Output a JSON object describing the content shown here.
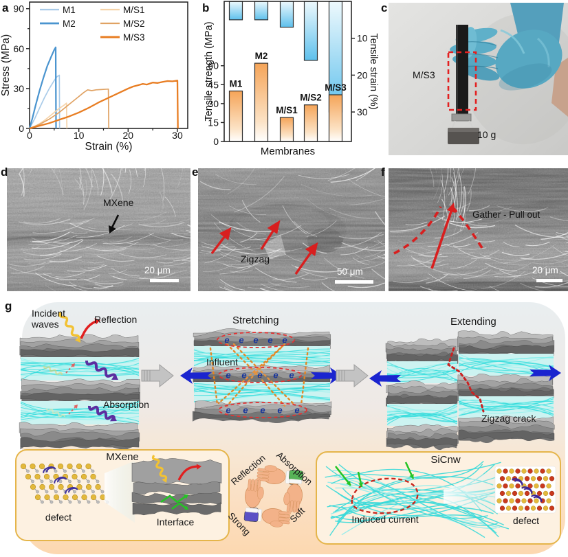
{
  "letters": [
    "a",
    "b",
    "c",
    "d",
    "e",
    "f",
    "g"
  ],
  "chart_data": [
    {
      "id": "stress-strain",
      "type": "line",
      "title": "",
      "xlabel": "Strain (%)",
      "ylabel": "Stress (MPa)",
      "xlim": [
        0,
        32.1
      ],
      "ylim": [
        0,
        95
      ],
      "xticks": [
        0,
        10,
        20,
        30
      ],
      "yticks": [
        0,
        30,
        60,
        90
      ],
      "xminor": [
        5,
        15,
        25
      ],
      "yminor": [
        15,
        45,
        75
      ],
      "grid": false,
      "legend_position": "top-left",
      "legend_columns": [
        [
          0,
          1
        ],
        [
          2,
          3,
          4
        ]
      ],
      "series": [
        {
          "name": "M1",
          "color": "#a9cbe9",
          "width": 1.7,
          "points": [
            [
              0,
              0
            ],
            [
              1,
              7
            ],
            [
              2,
              15
            ],
            [
              3,
              23
            ],
            [
              4,
              30
            ],
            [
              5,
              36
            ],
            [
              5.6,
              39
            ],
            [
              6.05,
              40
            ],
            [
              6.1,
              0
            ]
          ]
        },
        {
          "name": "M2",
          "color": "#4a94cf",
          "width": 2.2,
          "points": [
            [
              0,
              0
            ],
            [
              0.6,
              8
            ],
            [
              1.2,
              17
            ],
            [
              2,
              28
            ],
            [
              2.8,
              38
            ],
            [
              3.6,
              47
            ],
            [
              4.4,
              54
            ],
            [
              5,
              59
            ],
            [
              5.3,
              61
            ],
            [
              5.38,
              0
            ]
          ]
        },
        {
          "name": "M/S1",
          "color": "#f6d3a9",
          "width": 1.7,
          "points": [
            [
              0,
              0
            ],
            [
              1,
              1.5
            ],
            [
              2,
              3.5
            ],
            [
              3,
              6
            ],
            [
              4,
              9
            ],
            [
              5,
              12
            ],
            [
              6,
              15
            ],
            [
              7,
              17.5
            ],
            [
              7.5,
              19
            ],
            [
              7.58,
              0
            ]
          ]
        },
        {
          "name": "M/S2",
          "color": "#e0a263",
          "width": 1.7,
          "points": [
            [
              0,
              0
            ],
            [
              2,
              3
            ],
            [
              4,
              7
            ],
            [
              6,
              12
            ],
            [
              8,
              18
            ],
            [
              10,
              24
            ],
            [
              11,
              27
            ],
            [
              11.8,
              29
            ],
            [
              12.6,
              28.4
            ],
            [
              13.5,
              29
            ],
            [
              14.5,
              29.2
            ],
            [
              16,
              29.6
            ],
            [
              16.08,
              0
            ]
          ]
        },
        {
          "name": "M/S3",
          "color": "#e87d22",
          "width": 2.3,
          "points": [
            [
              0,
              0
            ],
            [
              2,
              2
            ],
            [
              4,
              4
            ],
            [
              6,
              6.5
            ],
            [
              8,
              9
            ],
            [
              10,
              12
            ],
            [
              12,
              15.5
            ],
            [
              14,
              19.5
            ],
            [
              16,
              23
            ],
            [
              18,
              26.5
            ],
            [
              20,
              30
            ],
            [
              21,
              31.5
            ],
            [
              22,
              32.5
            ],
            [
              23,
              33.5
            ],
            [
              23.8,
              33
            ],
            [
              25,
              34.5
            ],
            [
              26,
              34.2
            ],
            [
              27,
              35
            ],
            [
              28,
              35.6
            ],
            [
              29,
              35.4
            ],
            [
              30,
              36
            ],
            [
              30.1,
              0
            ]
          ]
        }
      ]
    },
    {
      "id": "membranes-bars",
      "type": "bar",
      "categories": [
        "M1",
        "M2",
        "M/S1",
        "M/S2",
        "M/S3"
      ],
      "xlabel": "Membranes",
      "ylabel_left": "Tensile strength (MPa)",
      "ylabel_right": "Tensile strain (%)",
      "left_ticks": [
        0,
        15,
        30,
        45,
        60
      ],
      "right_ticks": [
        10,
        20,
        30
      ],
      "left_range": [
        0,
        111
      ],
      "right_range": [
        0,
        38
      ],
      "series": [
        {
          "name": "Tensile strength (MPa)",
          "axis": "left",
          "direction": "up",
          "values": [
            40,
            62,
            19,
            29,
            37
          ]
        },
        {
          "name": "Tensile strain (%)",
          "axis": "right",
          "direction": "down",
          "values": [
            5,
            5,
            7,
            16,
            30
          ]
        }
      ]
    }
  ],
  "panel_c": {
    "sample": "M/S3",
    "weight": "10 g"
  },
  "sem": [
    {
      "label": "MXene",
      "scale": "20 μm"
    },
    {
      "label": "Zigzag",
      "scale": "50 μm"
    },
    {
      "label": "Gather - Pull out",
      "scale": "20 μm"
    }
  ],
  "schematic": {
    "stage1": {
      "incident": "Incident waves",
      "reflection": "Reflection",
      "absorption": "Absorption"
    },
    "stage2": {
      "title": "Stretching",
      "influent": "Influent",
      "electron": "e"
    },
    "stage3": {
      "title": "Extending",
      "crack": "Zigzag crack"
    },
    "mxene_box": {
      "title": "MXene",
      "defect": "defect",
      "interface": "Interface"
    },
    "hands": {
      "reflection": "Reflection",
      "absorption": "Absorption",
      "strong": "Strong",
      "soft": "Soft"
    },
    "sicnw_box": {
      "title": "SiCnw",
      "current": "Induced current",
      "defect": "defect"
    },
    "colors": {
      "mxene_gray": "#8f8f8f",
      "sicnw_cyan": "#35dcdc",
      "force_blue": "#1a24cf",
      "crack_red": "#c92222",
      "box_border": "#e5b54a"
    }
  }
}
